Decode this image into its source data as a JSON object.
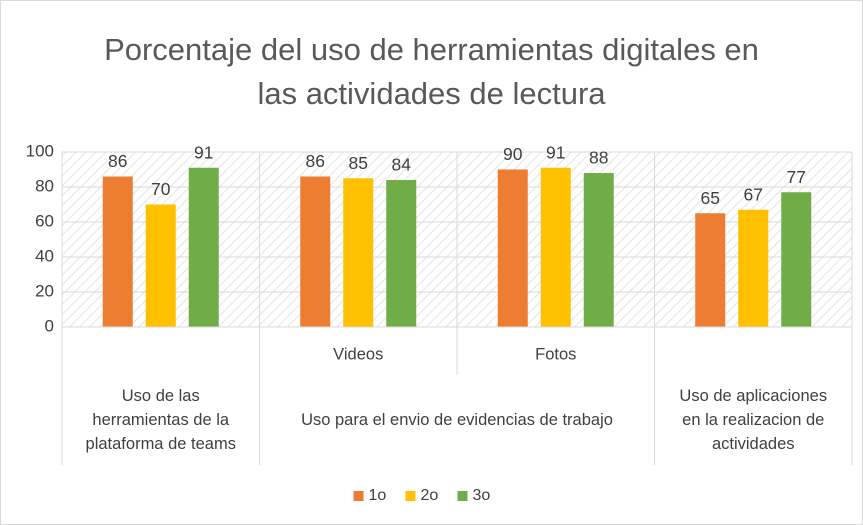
{
  "chart_data": {
    "type": "bar",
    "title": "Porcentaje del uso de herramientas digitales en las actividades de lectura",
    "categories": [
      null,
      "Videos",
      "Fotos",
      null
    ],
    "groups": [
      {
        "label": "Uso de las herramientas de la plataforma de teams",
        "span": 1
      },
      {
        "label": "Uso para el envio de evidencias de trabajo",
        "span": 2
      },
      {
        "label": "Uso de aplicaciones en la realizacion de actividades",
        "span": 1
      }
    ],
    "series": [
      {
        "name": "1o",
        "color": "#ED7D31",
        "values": [
          86,
          86,
          90,
          65
        ]
      },
      {
        "name": "2o",
        "color": "#FFC000",
        "values": [
          70,
          85,
          91,
          67
        ]
      },
      {
        "name": "3o",
        "color": "#70AD47",
        "values": [
          91,
          84,
          88,
          77
        ]
      }
    ],
    "ylim": [
      0,
      100
    ],
    "yticks": [
      0,
      20,
      40,
      60,
      80,
      100
    ],
    "grid": true,
    "legend": "bottom"
  }
}
